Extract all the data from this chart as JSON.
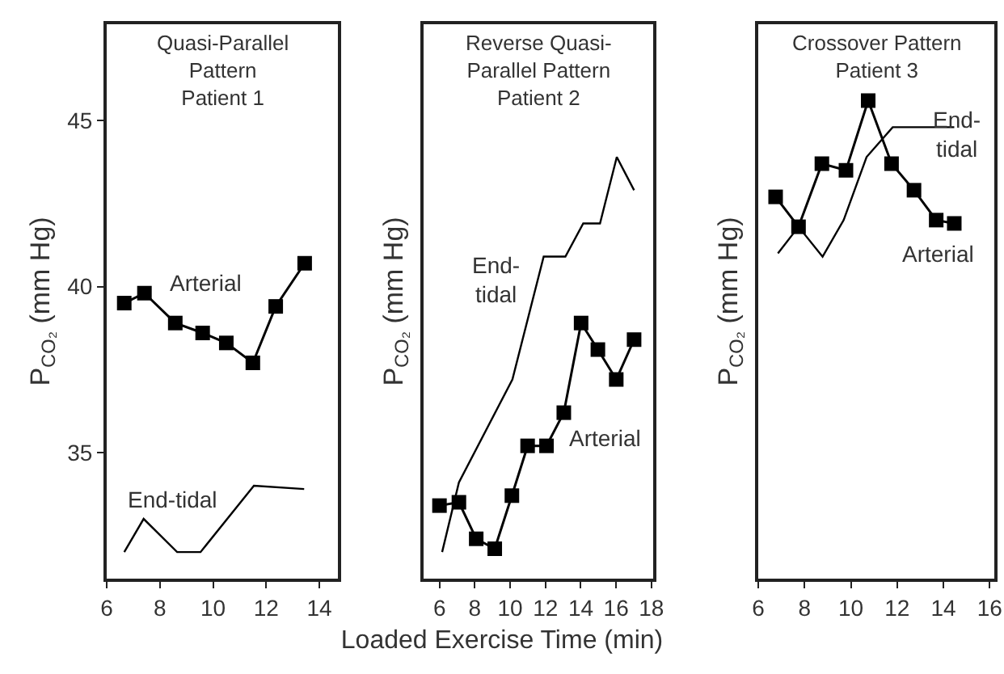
{
  "chart_data": [
    {
      "type": "line",
      "title": "Quasi-Parallel\nPattern\nPatient 1",
      "ylabel": "P$_{CO₂}$ (mm Hg)",
      "xlim": [
        6,
        14.7
      ],
      "xticks": [
        6,
        8,
        10,
        12,
        14
      ],
      "ylim": [
        31.2,
        47.9
      ],
      "yticks": [
        35,
        40,
        45
      ],
      "grid": false,
      "legend": false,
      "series": [
        {
          "name": "Arterial",
          "color": "#000000",
          "marker": "square",
          "line_style": "solid",
          "x": [
            6.66,
            7.42,
            8.58,
            9.61,
            10.5,
            11.5,
            12.36,
            13.45
          ],
          "values": [
            39.5,
            39.8,
            38.9,
            38.6,
            38.3,
            37.7,
            39.4,
            40.7
          ]
        },
        {
          "name": "End-tidal",
          "color": "#000000",
          "marker": "none",
          "line_style": "solid",
          "x": [
            6.66,
            7.39,
            8.65,
            9.53,
            11.54,
            13.43
          ],
          "values": [
            32.0,
            33.0,
            32.0,
            32.0,
            34.0,
            33.9
          ]
        }
      ]
    },
    {
      "type": "line",
      "title": "Reverse Quasi-\nParallel Pattern\nPatient 2",
      "ylabel": "P$_{CO₂}$ (mm Hg)",
      "xlabel": "Loaded Exercise Time (min)",
      "xlim": [
        5.1,
        18.1
      ],
      "xticks": [
        6,
        8,
        10,
        12,
        14,
        16,
        18
      ],
      "ylim": [
        31.2,
        47.9
      ],
      "tick_labels": "x",
      "grid": false,
      "legend": false,
      "series": [
        {
          "name": "Arterial",
          "color": "#000000",
          "marker": "square",
          "line_style": "solid",
          "x": [
            6.0,
            7.1,
            8.08,
            9.13,
            10.1,
            10.99,
            12.06,
            13.04,
            14.02,
            14.97,
            16.01,
            17.02
          ],
          "values": [
            33.4,
            33.5,
            32.4,
            32.1,
            33.7,
            35.2,
            35.2,
            36.2,
            38.9,
            38.1,
            37.2,
            38.4
          ]
        },
        {
          "name": "End-\ntidal",
          "color": "#000000",
          "marker": "none",
          "line_style": "solid",
          "x": [
            6.15,
            7.1,
            10.13,
            11.9,
            13.13,
            14.14,
            15.09,
            16.04,
            17.02
          ],
          "values": [
            32.0,
            34.1,
            37.2,
            40.9,
            40.9,
            41.9,
            41.9,
            43.9,
            42.9
          ]
        }
      ]
    },
    {
      "type": "line",
      "title": "Crossover Pattern\nPatient 3",
      "ylabel": "P$_{CO₂}$ (mm Hg)",
      "xlim": [
        6,
        16.2
      ],
      "xticks": [
        6,
        8,
        10,
        12,
        14,
        16
      ],
      "ylim": [
        31.2,
        47.9
      ],
      "tick_labels": "x",
      "grid": false,
      "legend": false,
      "series": [
        {
          "name": "Arterial",
          "color": "#000000",
          "marker": "square",
          "line_style": "solid",
          "x": [
            6.75,
            7.74,
            8.75,
            9.79,
            10.75,
            11.76,
            12.73,
            13.69,
            14.47
          ],
          "values": [
            42.7,
            41.8,
            43.7,
            43.5,
            45.6,
            43.7,
            42.9,
            42.0,
            41.9
          ]
        },
        {
          "name": "End-\ntidal",
          "color": "#000000",
          "marker": "none",
          "line_style": "solid",
          "x": [
            6.85,
            7.74,
            8.78,
            9.69,
            10.68,
            11.81,
            14.47
          ],
          "values": [
            41.0,
            41.8,
            40.9,
            42.0,
            43.9,
            44.8,
            44.8
          ]
        }
      ]
    }
  ]
}
